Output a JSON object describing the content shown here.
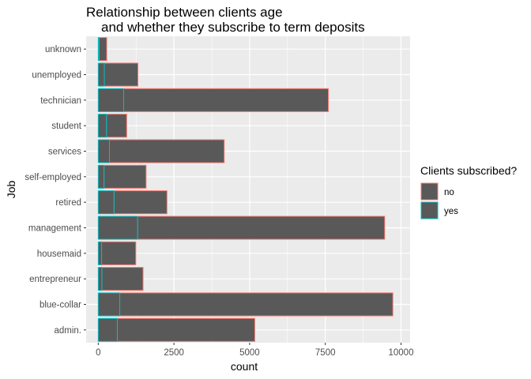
{
  "chart_data": {
    "type": "bar",
    "orientation": "horizontal",
    "stacked": true,
    "title_line1": "Relationship between clients age",
    "title_line2": "and whether they subscribe to term deposits",
    "xlabel": "count",
    "ylabel": "Job",
    "xlim": [
      -400,
      10300
    ],
    "xticks": [
      0,
      2500,
      5000,
      7500,
      10000
    ],
    "xtick_labels": [
      "0",
      "2500",
      "5000",
      "7500",
      "10000"
    ],
    "categories": [
      "admin.",
      "blue-collar",
      "entrepreneur",
      "housemaid",
      "management",
      "retired",
      "self-employed",
      "services",
      "student",
      "technician",
      "unemployed",
      "unknown"
    ],
    "series": [
      {
        "name": "no",
        "values": [
          4540,
          9020,
          1360,
          1130,
          8160,
          1750,
          1390,
          3790,
          670,
          6760,
          1110,
          250
        ],
        "fill": "#595959",
        "outline": "#F8766D"
      },
      {
        "name": "yes",
        "values": [
          630,
          710,
          120,
          110,
          1300,
          520,
          190,
          370,
          270,
          840,
          200,
          30
        ],
        "fill": "#595959",
        "outline": "#00BFC4"
      }
    ],
    "legend": {
      "title": "Clients subscribed?",
      "position": "right"
    },
    "grid": true,
    "panel_background": "#EBEBEB",
    "gridline_color": "#FFFFFF"
  }
}
